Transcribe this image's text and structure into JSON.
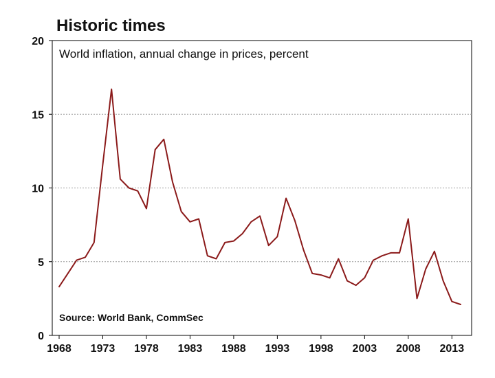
{
  "chart_data": {
    "type": "line",
    "title": "Historic times",
    "subtitle": "World inflation, annual change in prices, percent",
    "source": "Source: World Bank, CommSec",
    "xlabel": "",
    "ylabel": "",
    "xlim": [
      1968,
      2014
    ],
    "ylim": [
      0,
      20
    ],
    "x_ticks": [
      1968,
      1973,
      1978,
      1983,
      1988,
      1993,
      1998,
      2003,
      2008,
      2013
    ],
    "x_tick_labels": [
      "1968",
      "1973",
      "1978",
      "1983",
      "1988",
      "1993",
      "1998",
      "2003",
      "2008",
      "2013"
    ],
    "y_ticks": [
      0,
      5,
      10,
      15,
      20
    ],
    "y_tick_labels": [
      "0",
      "5",
      "10",
      "15",
      "20"
    ],
    "grid": "horizontal dotted",
    "legend": "none",
    "line_color": "#8b1a1a",
    "series": [
      {
        "x": [
          1968,
          1969,
          1970,
          1971,
          1972,
          1973,
          1974,
          1975,
          1976,
          1977,
          1978,
          1979,
          1980,
          1981,
          1982,
          1983,
          1984,
          1985,
          1986,
          1987,
          1988,
          1989,
          1990,
          1991,
          1992,
          1993,
          1994,
          1995,
          1996,
          1997,
          1998,
          1999,
          2000,
          2001,
          2002,
          2003,
          2004,
          2005,
          2006,
          2007,
          2008,
          2009,
          2010,
          2011,
          2012,
          2013,
          2014
        ],
        "values": [
          3.3,
          4.2,
          5.1,
          5.3,
          6.3,
          11.6,
          16.7,
          10.6,
          10.0,
          9.8,
          8.6,
          12.6,
          13.3,
          10.4,
          8.4,
          7.7,
          7.9,
          5.4,
          5.2,
          6.3,
          6.4,
          6.9,
          7.7,
          8.1,
          6.1,
          6.7,
          9.3,
          7.8,
          5.8,
          4.2,
          4.1,
          3.9,
          5.2,
          3.7,
          3.4,
          3.9,
          5.1,
          5.4,
          5.6,
          5.6,
          7.9,
          2.5,
          4.5,
          5.7,
          3.7,
          2.3,
          2.1
        ]
      }
    ]
  }
}
